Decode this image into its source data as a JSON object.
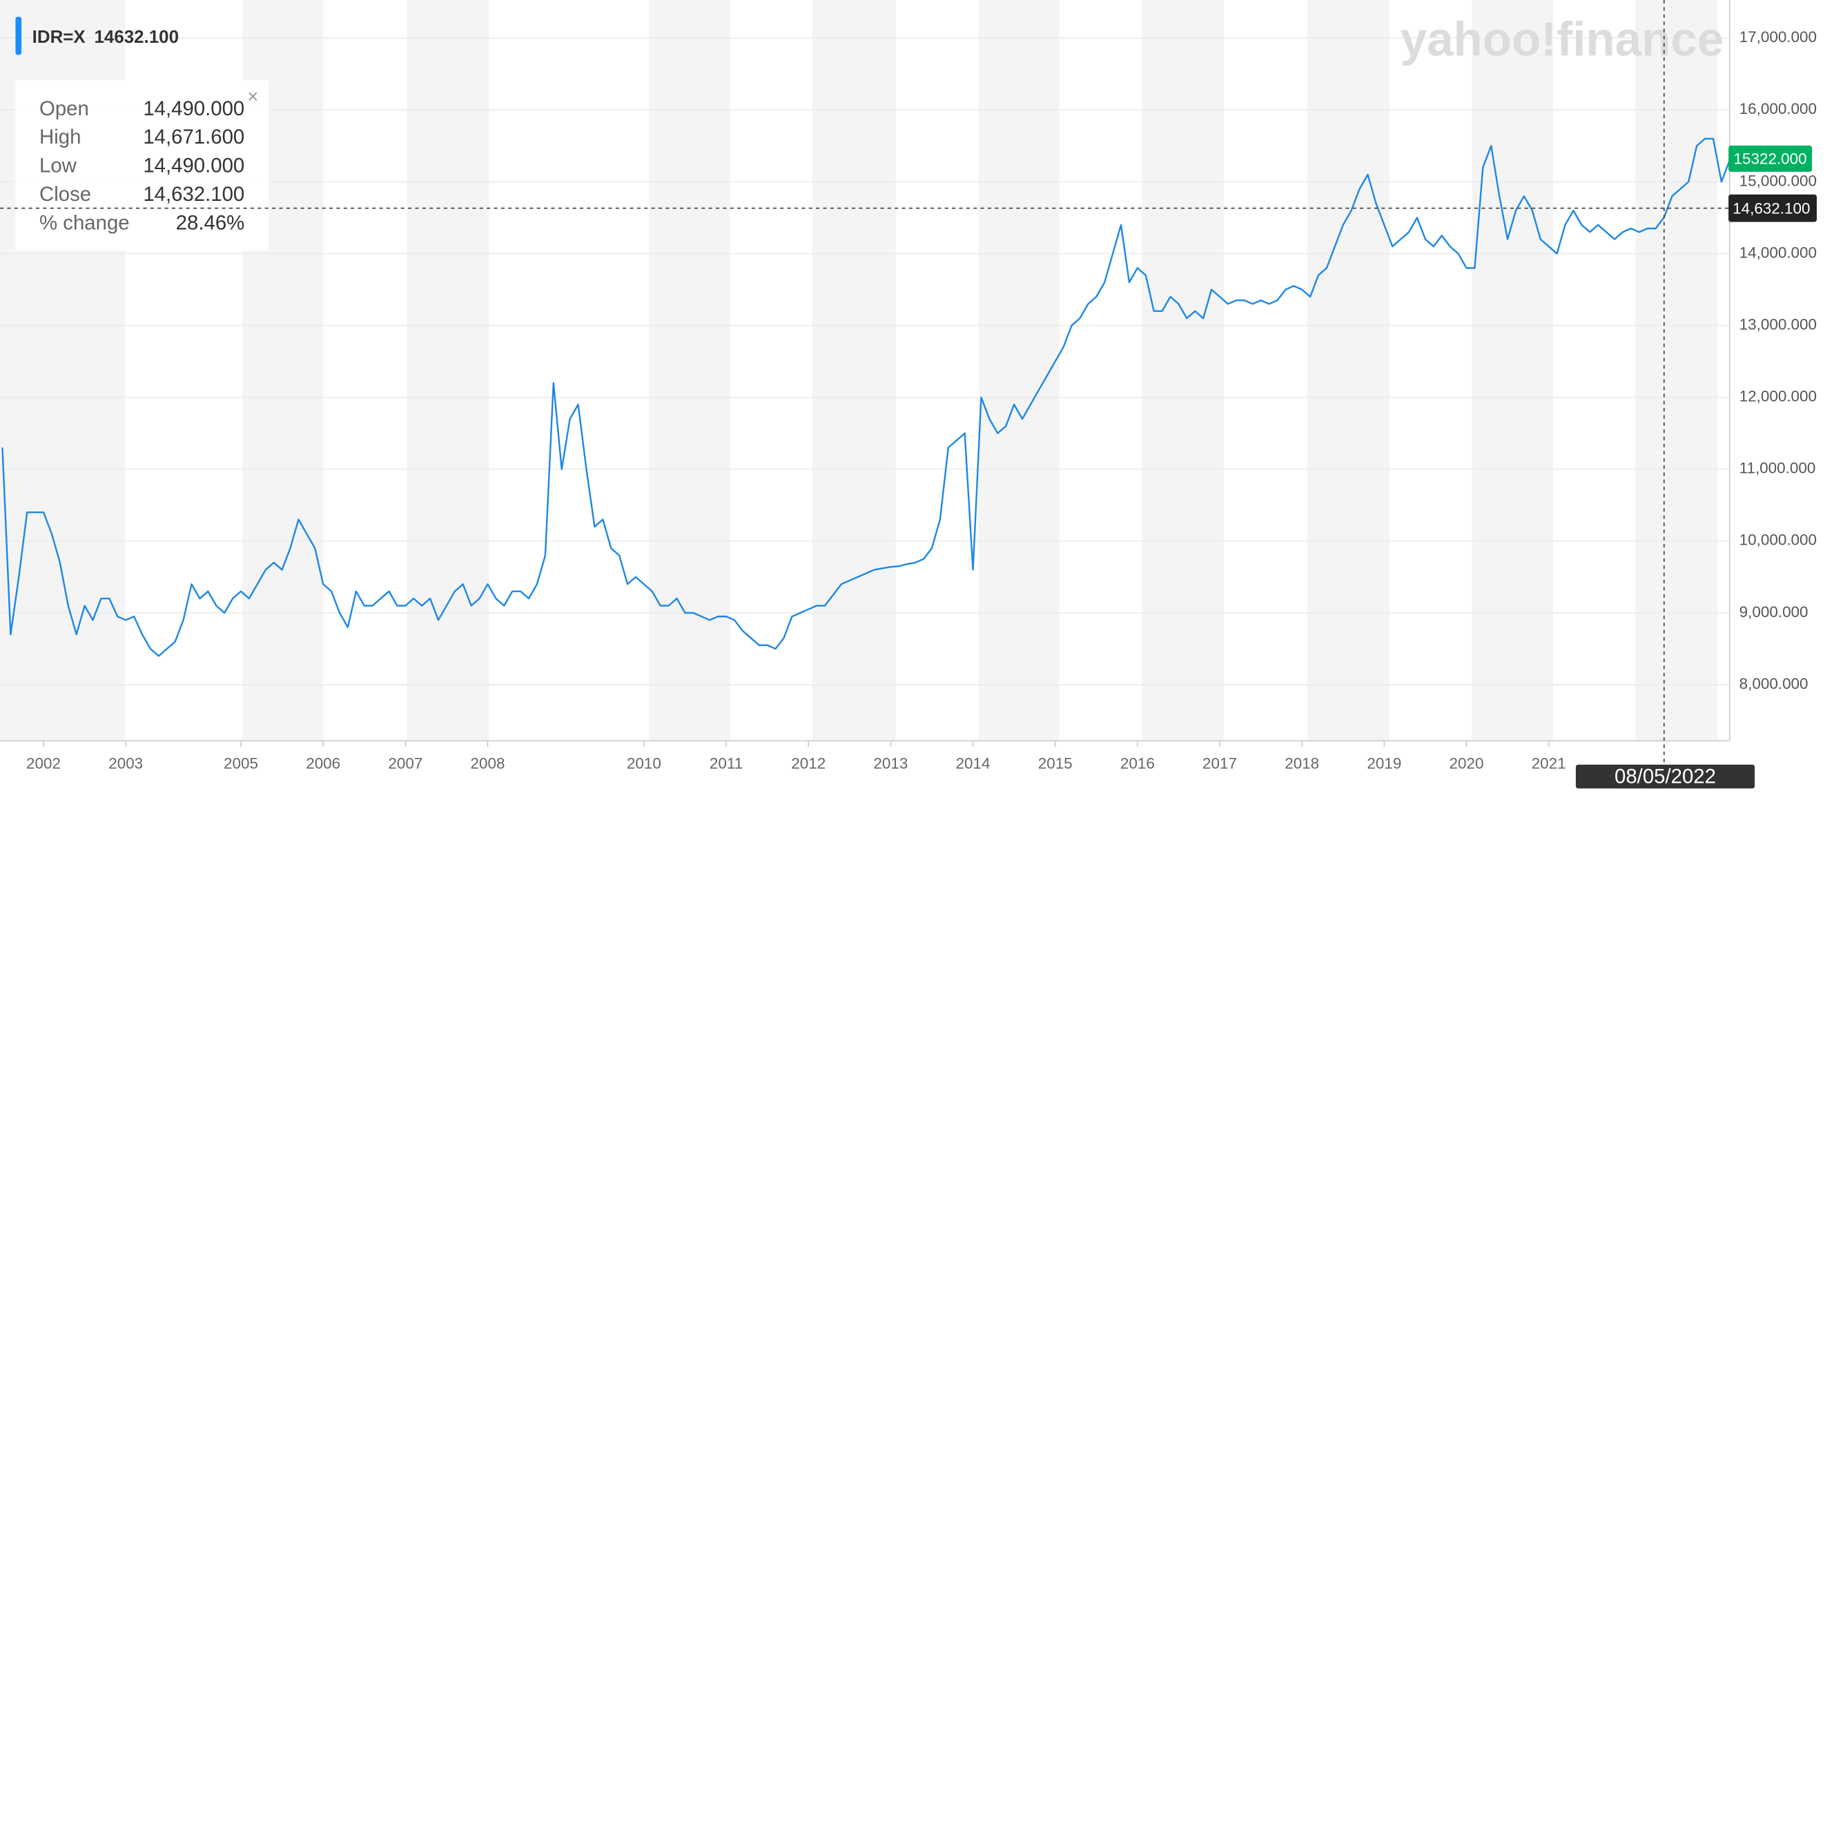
{
  "chart_data": {
    "type": "line",
    "header": {
      "symbol": "IDR=X",
      "price": "14632.100"
    },
    "watermark": "yahoo!finance",
    "tooltip": [
      {
        "label": "Open",
        "value": "14,490.000"
      },
      {
        "label": "High",
        "value": "14,671.600"
      },
      {
        "label": "Low",
        "value": "14,490.000"
      },
      {
        "label": "Close",
        "value": "14,632.100"
      },
      {
        "label": "% change",
        "value": "28.46%"
      }
    ],
    "crosshair": {
      "date": "08/05/2022",
      "value": 14632.1,
      "label": "14,632.100"
    },
    "last_price": {
      "value": 15322,
      "label": "15322.000"
    },
    "ylim": [
      7220,
      17530
    ],
    "yticks": [
      {
        "value": 8000,
        "label": "8,000.000"
      },
      {
        "value": 9000,
        "label": "9,000.000"
      },
      {
        "value": 10000,
        "label": "10,000.000"
      },
      {
        "value": 11000,
        "label": "11,000.000"
      },
      {
        "value": 12000,
        "label": "12,000.000"
      },
      {
        "value": 13000,
        "label": "13,000.000"
      },
      {
        "value": 14000,
        "label": "14,000.000"
      },
      {
        "value": 15000,
        "label": "15,000.000"
      },
      {
        "value": 16000,
        "label": "16,000.000"
      },
      {
        "value": 17000,
        "label": "17,000.000"
      }
    ],
    "grid": true,
    "categories": [
      null,
      null,
      null,
      null,
      null,
      "2002",
      null,
      null,
      null,
      null,
      null,
      null,
      null,
      null,
      null,
      "2003",
      null,
      null,
      null,
      null,
      null,
      null,
      null,
      null,
      null,
      null,
      null,
      null,
      null,
      "2005",
      null,
      null,
      null,
      null,
      null,
      null,
      null,
      null,
      null,
      "2006",
      null,
      null,
      null,
      null,
      null,
      null,
      null,
      null,
      null,
      "2007",
      null,
      null,
      null,
      null,
      null,
      null,
      null,
      null,
      null,
      "2008",
      null,
      null,
      null,
      null,
      null,
      null,
      null,
      null,
      null,
      null,
      null,
      null,
      null,
      null,
      null,
      null,
      null,
      null,
      "2010",
      null,
      null,
      null,
      null,
      null,
      null,
      null,
      null,
      null,
      "2011",
      null,
      null,
      null,
      null,
      null,
      null,
      null,
      null,
      null,
      "2012",
      null,
      null,
      null,
      null,
      null,
      null,
      null,
      null,
      null,
      "2013",
      null,
      null,
      null,
      null,
      null,
      null,
      null,
      null,
      null,
      "2014",
      null,
      null,
      null,
      null,
      null,
      null,
      null,
      null,
      null,
      "2015",
      null,
      null,
      null,
      null,
      null,
      null,
      null,
      null,
      null,
      "2016",
      null,
      null,
      null,
      null,
      null,
      null,
      null,
      null,
      null,
      "2017",
      null,
      null,
      null,
      null,
      null,
      null,
      null,
      null,
      null,
      "2018",
      null,
      null,
      null,
      null,
      null,
      null,
      null,
      null,
      null,
      "2019",
      null,
      null,
      null,
      null,
      null,
      null,
      null,
      null,
      null,
      "2020",
      null,
      null,
      null,
      null,
      null,
      null,
      null,
      null,
      null,
      "2021",
      null,
      null,
      null,
      null,
      null,
      null,
      null,
      null,
      null,
      null,
      null,
      null,
      null,
      null,
      null,
      null,
      null,
      null,
      null,
      null,
      null,
      null
    ],
    "series": [
      {
        "name": "IDR=X",
        "color": "#1e88e5",
        "values": [
          11300,
          8700,
          9500,
          10400,
          10400,
          10400,
          10100,
          9700,
          9100,
          8700,
          9100,
          8900,
          9200,
          9200,
          8950,
          8900,
          8950,
          8700,
          8500,
          8400,
          8500,
          8600,
          8900,
          9400,
          9200,
          9300,
          9100,
          9000,
          9200,
          9300,
          9200,
          9400,
          9600,
          9700,
          9600,
          9900,
          10300,
          10100,
          9900,
          9400,
          9300,
          9000,
          8800,
          9300,
          9100,
          9100,
          9200,
          9300,
          9100,
          9100,
          9200,
          9100,
          9200,
          8900,
          9100,
          9300,
          9400,
          9100,
          9200,
          9400,
          9200,
          9100,
          9300,
          9300,
          9200,
          9400,
          9800,
          12200,
          11000,
          11700,
          11900,
          11000,
          10200,
          10300,
          9900,
          9800,
          9400,
          9500,
          9400,
          9300,
          9100,
          9100,
          9200,
          9000,
          9000,
          8950,
          8900,
          8950,
          8950,
          8900,
          8750,
          8650,
          8550,
          8550,
          8500,
          8650,
          8950,
          9000,
          9050,
          9100,
          9100,
          9250,
          9400,
          9450,
          9500,
          9550,
          9600,
          9620,
          9640,
          9650,
          9680,
          9700,
          9750,
          9900,
          10300,
          11300,
          11400,
          11500,
          9600,
          12000,
          11700,
          11500,
          11600,
          11900,
          11700,
          11900,
          12100,
          12300,
          12500,
          12700,
          13000,
          13100,
          13300,
          13400,
          13600,
          14000,
          14400,
          13600,
          13800,
          13700,
          13200,
          13200,
          13400,
          13300,
          13100,
          13200,
          13100,
          13500,
          13400,
          13300,
          13350,
          13350,
          13300,
          13350,
          13300,
          13350,
          13500,
          13550,
          13500,
          13400,
          13700,
          13800,
          14100,
          14400,
          14600,
          14900,
          15100,
          14700,
          14400,
          14100,
          14200,
          14300,
          14500,
          14200,
          14100,
          14250,
          14100,
          14000,
          13800,
          13800,
          15200,
          15500,
          14800,
          14200,
          14600,
          14800,
          14600,
          14200,
          14100,
          14000,
          14400,
          14600,
          14400,
          14300,
          14400,
          14300,
          14200,
          14300,
          14350,
          14300,
          14350,
          14350,
          14500,
          14800,
          14900,
          15000,
          15500,
          15600,
          15600,
          15000,
          15300
        ]
      }
    ]
  }
}
